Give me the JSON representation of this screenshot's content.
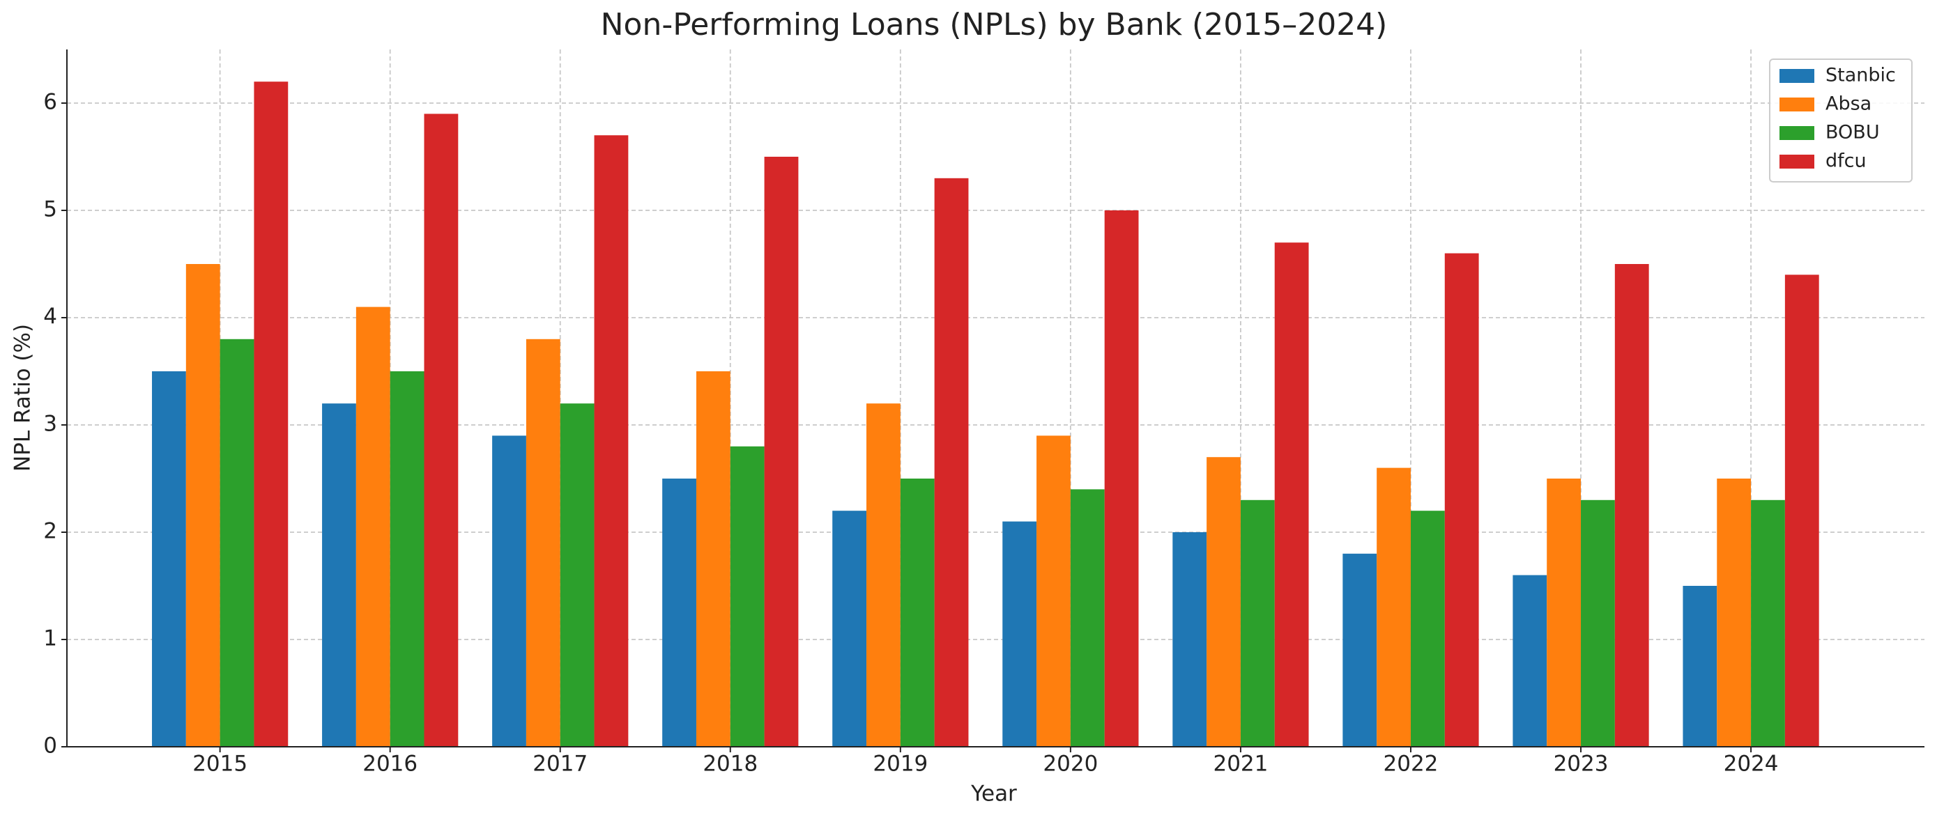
{
  "chart_data": {
    "type": "bar",
    "title": "Non-Performing Loans (NPLs) by Bank (2015–2024)",
    "x_label": "Year",
    "y_label": "NPL Ratio (%)",
    "categories": [
      "2015",
      "2016",
      "2017",
      "2018",
      "2019",
      "2020",
      "2021",
      "2022",
      "2023",
      "2024"
    ],
    "series": [
      {
        "name": "Stanbic",
        "color": "#1f77b4",
        "values": [
          3.5,
          3.2,
          2.9,
          2.5,
          2.2,
          2.1,
          2.0,
          1.8,
          1.6,
          1.5
        ]
      },
      {
        "name": "Absa",
        "color": "#ff7f0e",
        "values": [
          4.5,
          4.1,
          3.8,
          3.5,
          3.2,
          2.9,
          2.7,
          2.6,
          2.5,
          2.5
        ]
      },
      {
        "name": "BOBU",
        "color": "#2ca02c",
        "values": [
          3.8,
          3.5,
          3.2,
          2.8,
          2.5,
          2.4,
          2.3,
          2.2,
          2.3,
          2.3
        ]
      },
      {
        "name": "dfcu",
        "color": "#d62728",
        "values": [
          6.2,
          5.9,
          5.7,
          5.5,
          5.3,
          5.0,
          4.7,
          4.6,
          4.5,
          4.4
        ]
      }
    ],
    "ylim": [
      0,
      6.5
    ],
    "yticks": [
      0,
      1,
      2,
      3,
      4,
      5,
      6
    ],
    "grid": true,
    "legend": "upper right"
  }
}
